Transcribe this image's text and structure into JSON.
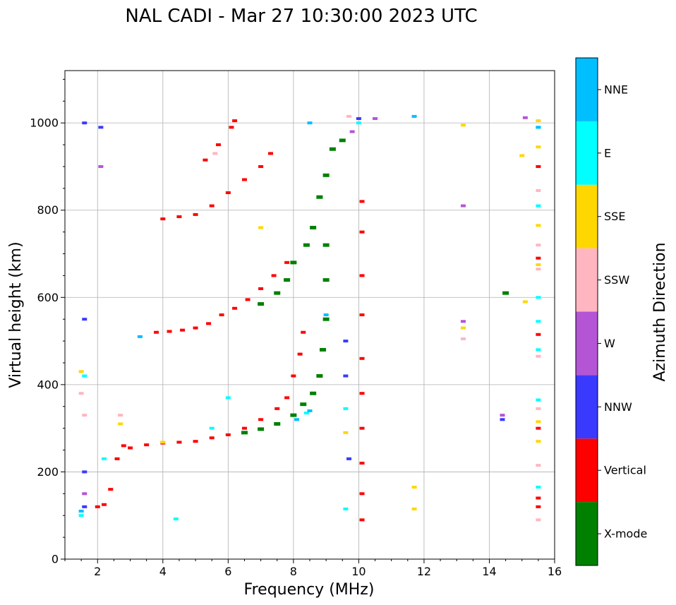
{
  "chart_data": {
    "type": "scatter",
    "title": "NAL CADI - Mar 27 10:30:00 2023 UTC",
    "xlabel": "Frequency (MHz)",
    "ylabel": "Virtual height (km)",
    "xlim": [
      1,
      16
    ],
    "ylim": [
      0,
      1120
    ],
    "grid": true,
    "xticks": [
      2,
      4,
      6,
      8,
      10,
      12,
      14,
      16
    ],
    "yticks": [
      0,
      200,
      400,
      600,
      800,
      1000
    ],
    "colorbar": {
      "title": "Azimuth Direction",
      "categories": [
        {
          "name": "X-mode",
          "color": "#008000"
        },
        {
          "name": "Vertical",
          "color": "#ff0000"
        },
        {
          "name": "NNW",
          "color": "#3a3aff"
        },
        {
          "name": "W",
          "color": "#b455d6"
        },
        {
          "name": "SSW",
          "color": "#ffb6c1"
        },
        {
          "name": "SSE",
          "color": "#ffd700"
        },
        {
          "name": "E",
          "color": "#00ffff"
        },
        {
          "name": "NNE",
          "color": "#00bfff"
        }
      ]
    },
    "series": [
      {
        "name": "Vertical",
        "color": "#ff0000",
        "points": [
          [
            2.0,
            120
          ],
          [
            2.2,
            125
          ],
          [
            2.4,
            160
          ],
          [
            2.6,
            230
          ],
          [
            2.8,
            260
          ],
          [
            3.0,
            255
          ],
          [
            3.5,
            262
          ],
          [
            4.0,
            266
          ],
          [
            4.5,
            268
          ],
          [
            5.0,
            270
          ],
          [
            5.5,
            278
          ],
          [
            6.0,
            285
          ],
          [
            6.5,
            300
          ],
          [
            7.0,
            320
          ],
          [
            7.5,
            345
          ],
          [
            7.8,
            370
          ],
          [
            8.0,
            420
          ],
          [
            8.2,
            470
          ],
          [
            8.3,
            520
          ],
          [
            3.8,
            520
          ],
          [
            4.2,
            522
          ],
          [
            4.6,
            525
          ],
          [
            5.0,
            530
          ],
          [
            5.4,
            540
          ],
          [
            5.8,
            560
          ],
          [
            6.2,
            575
          ],
          [
            6.6,
            595
          ],
          [
            7.0,
            620
          ],
          [
            7.4,
            650
          ],
          [
            7.8,
            680
          ],
          [
            4.0,
            780
          ],
          [
            4.5,
            785
          ],
          [
            5.0,
            790
          ],
          [
            5.5,
            810
          ],
          [
            6.0,
            840
          ],
          [
            6.5,
            870
          ],
          [
            7.0,
            900
          ],
          [
            7.3,
            930
          ],
          [
            5.3,
            915
          ],
          [
            5.7,
            950
          ],
          [
            6.1,
            990
          ],
          [
            6.2,
            1005
          ],
          [
            10.1,
            90
          ],
          [
            10.1,
            150
          ],
          [
            10.1,
            220
          ],
          [
            10.1,
            300
          ],
          [
            10.1,
            380
          ],
          [
            10.1,
            460
          ],
          [
            10.1,
            560
          ],
          [
            10.1,
            650
          ],
          [
            10.1,
            750
          ],
          [
            10.1,
            820
          ],
          [
            15.5,
            120
          ],
          [
            15.5,
            140
          ],
          [
            15.5,
            300
          ],
          [
            15.5,
            515
          ],
          [
            15.5,
            690
          ],
          [
            15.5,
            900
          ]
        ]
      },
      {
        "name": "X-mode",
        "color": "#008000",
        "points": [
          [
            6.5,
            290
          ],
          [
            7.0,
            298
          ],
          [
            7.5,
            310
          ],
          [
            8.0,
            330
          ],
          [
            8.3,
            355
          ],
          [
            8.6,
            380
          ],
          [
            8.8,
            420
          ],
          [
            8.9,
            480
          ],
          [
            9.0,
            550
          ],
          [
            9.0,
            640
          ],
          [
            9.0,
            720
          ],
          [
            7.0,
            585
          ],
          [
            7.5,
            610
          ],
          [
            7.8,
            640
          ],
          [
            8.0,
            680
          ],
          [
            8.4,
            720
          ],
          [
            8.6,
            760
          ],
          [
            8.8,
            830
          ],
          [
            9.0,
            880
          ],
          [
            9.2,
            940
          ],
          [
            9.5,
            960
          ],
          [
            14.5,
            610
          ]
        ]
      },
      {
        "name": "NNW",
        "color": "#3a3aff",
        "points": [
          [
            1.6,
            120
          ],
          [
            1.6,
            200
          ],
          [
            1.6,
            550
          ],
          [
            1.6,
            1000
          ],
          [
            2.1,
            990
          ],
          [
            9.6,
            500
          ],
          [
            9.6,
            420
          ],
          [
            9.7,
            230
          ],
          [
            10.0,
            1010
          ],
          [
            14.4,
            320
          ]
        ]
      },
      {
        "name": "W",
        "color": "#b455d6",
        "points": [
          [
            1.6,
            150
          ],
          [
            2.1,
            900
          ],
          [
            9.8,
            980
          ],
          [
            10.5,
            1010
          ],
          [
            13.2,
            810
          ],
          [
            13.2,
            545
          ],
          [
            15.1,
            1012
          ],
          [
            14.4,
            330
          ]
        ]
      },
      {
        "name": "SSW",
        "color": "#ffb6c1",
        "points": [
          [
            1.5,
            380
          ],
          [
            1.6,
            330
          ],
          [
            2.7,
            330
          ],
          [
            5.6,
            930
          ],
          [
            9.7,
            1015
          ],
          [
            15.5,
            90
          ],
          [
            15.5,
            215
          ],
          [
            15.5,
            345
          ],
          [
            15.5,
            465
          ],
          [
            15.5,
            665
          ],
          [
            15.5,
            720
          ],
          [
            15.5,
            845
          ],
          [
            13.2,
            505
          ]
        ]
      },
      {
        "name": "SSE",
        "color": "#ffd700",
        "points": [
          [
            1.5,
            430
          ],
          [
            2.7,
            310
          ],
          [
            4.0,
            268
          ],
          [
            7.0,
            760
          ],
          [
            9.6,
            290
          ],
          [
            11.7,
            165
          ],
          [
            11.7,
            115
          ],
          [
            13.2,
            995
          ],
          [
            13.2,
            530
          ],
          [
            15.0,
            925
          ],
          [
            15.1,
            590
          ],
          [
            15.5,
            270
          ],
          [
            15.5,
            315
          ],
          [
            15.5,
            675
          ],
          [
            15.5,
            765
          ],
          [
            15.5,
            945
          ],
          [
            15.5,
            1005
          ]
        ]
      },
      {
        "name": "E",
        "color": "#00ffff",
        "points": [
          [
            1.5,
            100
          ],
          [
            1.6,
            420
          ],
          [
            2.2,
            230
          ],
          [
            4.4,
            92
          ],
          [
            5.5,
            300
          ],
          [
            6.0,
            370
          ],
          [
            8.4,
            335
          ],
          [
            9.6,
            115
          ],
          [
            9.6,
            345
          ],
          [
            10.0,
            1000
          ],
          [
            15.5,
            165
          ],
          [
            15.5,
            365
          ],
          [
            15.5,
            480
          ],
          [
            15.5,
            545
          ],
          [
            15.5,
            600
          ],
          [
            15.5,
            810
          ],
          [
            15.5,
            990
          ]
        ]
      },
      {
        "name": "NNE",
        "color": "#00bfff",
        "points": [
          [
            1.5,
            110
          ],
          [
            3.3,
            510
          ],
          [
            8.1,
            320
          ],
          [
            8.5,
            340
          ],
          [
            8.5,
            1000
          ],
          [
            9.0,
            560
          ],
          [
            11.7,
            1015
          ],
          [
            15.5,
            990
          ]
        ]
      }
    ]
  }
}
